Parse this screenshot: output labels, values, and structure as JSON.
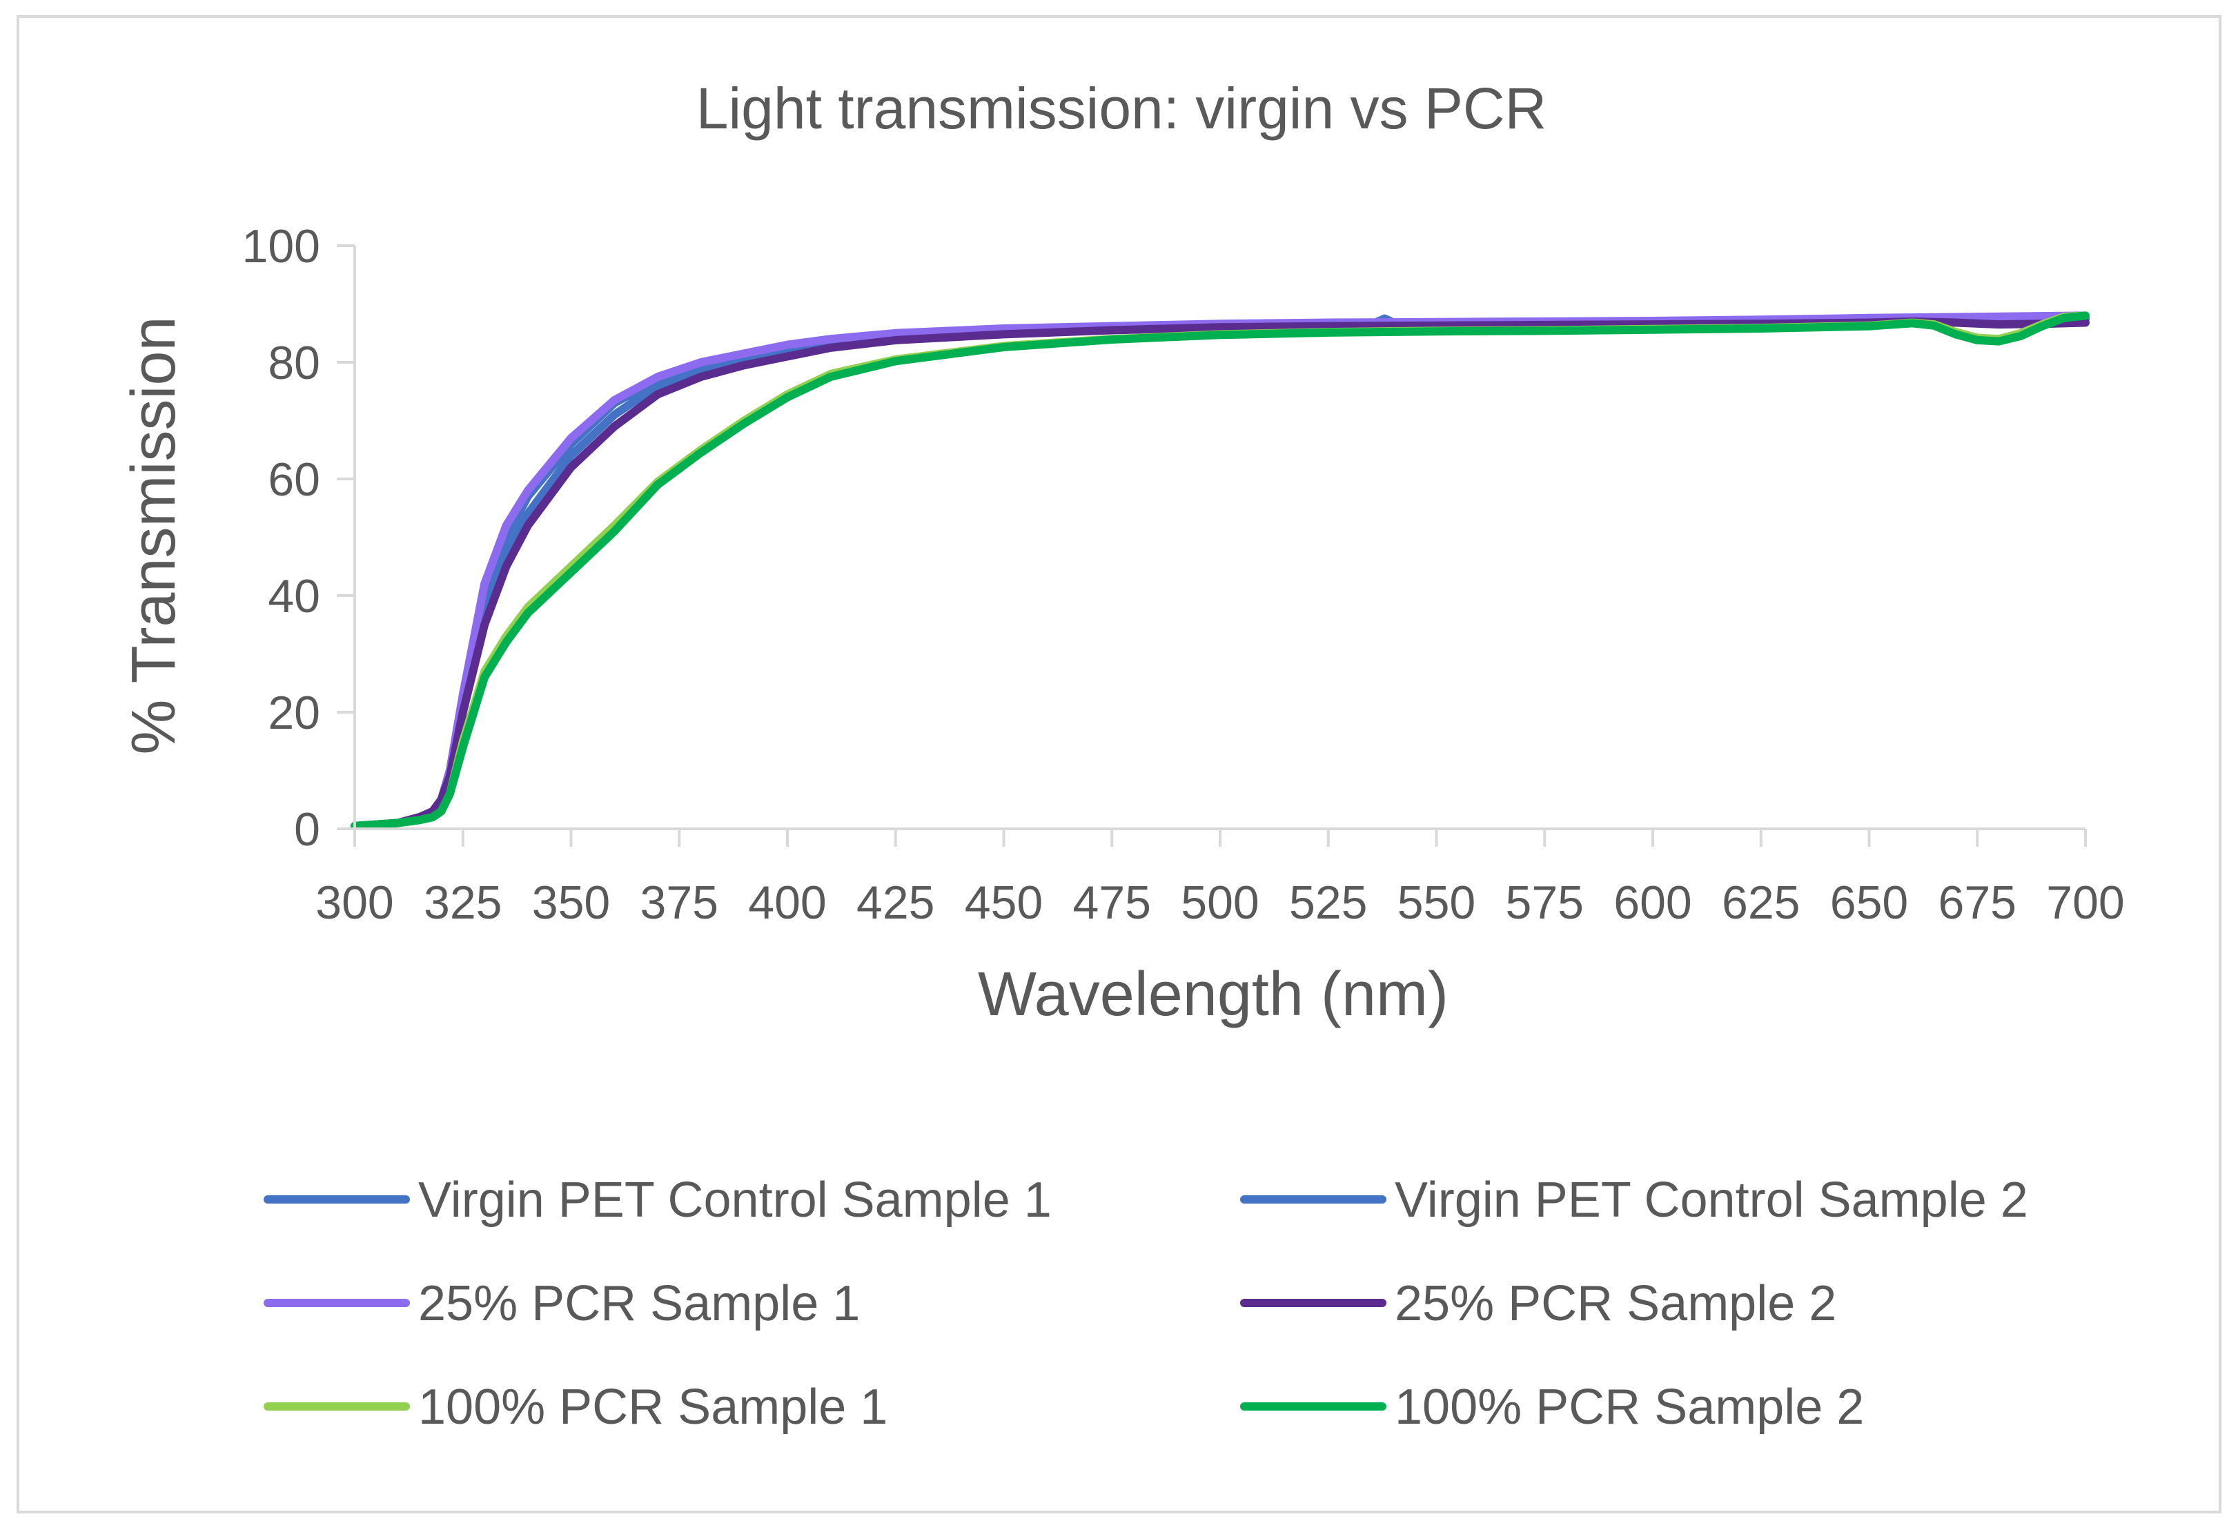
{
  "chart_data": {
    "type": "line",
    "title": "Light transmission: virgin vs PCR",
    "xlabel": "Wavelength (nm)",
    "ylabel": "% Transmission",
    "xlim": [
      300,
      700
    ],
    "ylim": [
      0,
      100
    ],
    "x_ticks": [
      "300",
      "325",
      "350",
      "375",
      "400",
      "425",
      "450",
      "475",
      "500",
      "525",
      "550",
      "575",
      "600",
      "625",
      "650",
      "675",
      "700"
    ],
    "y_ticks": [
      "0",
      "20",
      "40",
      "60",
      "80",
      "100"
    ],
    "grid": false,
    "legend_position": "bottom",
    "series": [
      {
        "name": "Virgin PET Control Sample 1",
        "color": "#4472C4",
        "x": [
          300,
          310,
          315,
          318,
          320,
          322,
          325,
          330,
          335,
          340,
          350,
          360,
          370,
          380,
          390,
          400,
          410,
          425,
          450,
          475,
          500,
          525,
          535,
          538,
          541,
          550,
          575,
          600,
          625,
          650,
          675,
          700
        ],
        "y": [
          0.5,
          1,
          2,
          3,
          5,
          10,
          22,
          40,
          50,
          57,
          66,
          73,
          77,
          79.5,
          81,
          82.5,
          83.5,
          84.5,
          85.5,
          86,
          86.5,
          86.5,
          86.5,
          87.5,
          86.5,
          86.5,
          86.5,
          86.5,
          86.8,
          87,
          87.2,
          87.5
        ]
      },
      {
        "name": "Virgin PET Control Sample 2",
        "color": "#4472C4",
        "x": [
          300,
          310,
          315,
          318,
          320,
          322,
          325,
          330,
          335,
          340,
          350,
          360,
          370,
          380,
          390,
          400,
          410,
          425,
          450,
          475,
          500,
          525,
          550,
          575,
          600,
          625,
          650,
          675,
          700
        ],
        "y": [
          0.5,
          1,
          2,
          3,
          5,
          9,
          20,
          37,
          47,
          54,
          64,
          71,
          76,
          78.5,
          80.5,
          82,
          83,
          84.2,
          85.2,
          85.8,
          86.2,
          86.3,
          86.4,
          86.4,
          86.5,
          86.7,
          86.9,
          87.1,
          87.4
        ]
      },
      {
        "name": "25% PCR Sample 1",
        "color": "#8C6BEF",
        "x": [
          300,
          310,
          315,
          318,
          320,
          322,
          325,
          330,
          335,
          340,
          350,
          360,
          370,
          380,
          390,
          400,
          410,
          425,
          450,
          475,
          500,
          525,
          550,
          575,
          600,
          625,
          650,
          675,
          700
        ],
        "y": [
          0.5,
          1,
          2,
          3,
          5,
          10,
          23,
          42,
          52,
          58,
          67,
          73.5,
          77.5,
          80,
          81.5,
          83,
          84,
          85,
          85.8,
          86.2,
          86.6,
          86.8,
          86.9,
          87,
          87.1,
          87.3,
          87.6,
          87.8,
          88
        ]
      },
      {
        "name": "25% PCR Sample 2",
        "color": "#5B2C8F",
        "x": [
          300,
          310,
          315,
          318,
          320,
          322,
          325,
          330,
          335,
          340,
          350,
          360,
          370,
          380,
          390,
          400,
          410,
          425,
          450,
          475,
          500,
          525,
          550,
          575,
          600,
          625,
          650,
          660,
          670,
          680,
          690,
          700
        ],
        "y": [
          0.5,
          1,
          2,
          3,
          5,
          9,
          20,
          35,
          45,
          52,
          62,
          69,
          74.5,
          77.5,
          79.5,
          81,
          82.5,
          83.8,
          84.8,
          85.5,
          86,
          86.2,
          86.3,
          86.4,
          86.5,
          86.6,
          86.8,
          87,
          86.8,
          86.5,
          86.6,
          86.8
        ]
      },
      {
        "name": "100% PCR Sample 1",
        "color": "#92D050",
        "x": [
          300,
          310,
          315,
          318,
          320,
          322,
          325,
          330,
          335,
          340,
          350,
          360,
          370,
          380,
          390,
          400,
          410,
          425,
          450,
          475,
          500,
          525,
          550,
          575,
          600,
          625,
          650,
          660,
          665,
          670,
          675,
          680,
          685,
          690,
          695,
          700
        ],
        "y": [
          0.5,
          1,
          1.5,
          2,
          3,
          6,
          15,
          27,
          33,
          38,
          45,
          52,
          59.5,
          65,
          70,
          74.5,
          78,
          80.5,
          82.8,
          84,
          84.8,
          85.2,
          85.4,
          85.5,
          85.7,
          85.9,
          86.3,
          86.8,
          86.5,
          85.2,
          84.2,
          84,
          85,
          86.5,
          87.8,
          88
        ]
      },
      {
        "name": "100% PCR Sample 2",
        "color": "#00B050",
        "x": [
          300,
          310,
          315,
          318,
          320,
          322,
          325,
          330,
          335,
          340,
          350,
          360,
          370,
          380,
          390,
          400,
          410,
          425,
          450,
          475,
          500,
          525,
          550,
          575,
          600,
          625,
          650,
          660,
          665,
          670,
          675,
          680,
          685,
          690,
          695,
          700
        ],
        "y": [
          0.5,
          1,
          1.5,
          2,
          3,
          6,
          14,
          26,
          32,
          37,
          44,
          51,
          59,
          64.5,
          69.5,
          74,
          77.5,
          80.2,
          82.6,
          83.9,
          84.7,
          85.1,
          85.3,
          85.4,
          85.6,
          85.8,
          86.2,
          86.7,
          86.3,
          84.8,
          83.8,
          83.6,
          84.5,
          86.2,
          87.6,
          88
        ]
      }
    ]
  }
}
